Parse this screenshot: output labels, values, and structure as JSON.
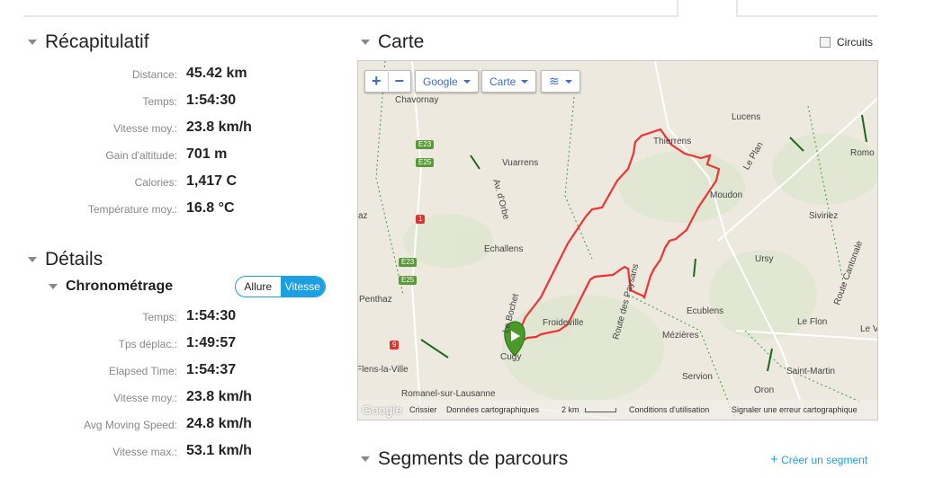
{
  "recap": {
    "title": "Récapitulatif",
    "rows": [
      {
        "label": "Distance:",
        "value": "45.42 km"
      },
      {
        "label": "Temps:",
        "value": "1:54:30"
      },
      {
        "label": "Vitesse moy.:",
        "value": "23.8 km/h"
      },
      {
        "label": "Gain d'altitude:",
        "value": "701 m"
      },
      {
        "label": "Calories:",
        "value": "1,417 C"
      },
      {
        "label": "Température moy.:",
        "value": "16.8 °C"
      }
    ]
  },
  "details": {
    "title": "Détails",
    "sub": "Chronométrage",
    "toggle": [
      "Allure",
      "Vitesse"
    ],
    "toggle_selected": "Vitesse",
    "rows": [
      {
        "label": "Temps:",
        "value": "1:54:30"
      },
      {
        "label": "Tps déplac.:",
        "value": "1:49:57"
      },
      {
        "label": "Elapsed Time:",
        "value": "1:54:37"
      },
      {
        "label": "Vitesse moy.:",
        "value": "23.8 km/h"
      },
      {
        "label": "Avg Moving Speed:",
        "value": "24.8 km/h"
      },
      {
        "label": "Vitesse max.:",
        "value": "53.1 km/h"
      }
    ]
  },
  "map": {
    "title": "Carte",
    "circuits_label": "Circuits",
    "circuits_checked": false,
    "provider": "Google",
    "type": "Carte",
    "zoom_in": "+",
    "zoom_out": "−",
    "places": [
      "Chavornay",
      "Vuarrens",
      "Thierrens",
      "Lucens",
      "Romo",
      "Moudon",
      "Le Plan",
      "Siviriez",
      "Echallens",
      "Ursy",
      "Route Cantonale",
      "Penthaz",
      "Le Bochet",
      "Froideville",
      "Route des Paysans",
      "Ecublens",
      "Le Flon",
      "Mézières",
      "Cugy",
      "Flens-la-Ville",
      "Servion",
      "Saint-Martin",
      "Romanel-sur-Lausanne",
      "Oron",
      "Av. d'Orbe",
      "Le Ve",
      "az"
    ],
    "roads": [
      "E23",
      "E25",
      "1",
      "E23",
      "E25",
      "9"
    ],
    "footer": {
      "logo": "Google",
      "crissier": "Crissier",
      "data": "Données cartographiques",
      "scale": "2 km",
      "terms": "Conditions d'utilisation",
      "report": "Signaler une erreur cartographique"
    },
    "route_color": "#ee3333"
  },
  "segments": {
    "title": "Segments de parcours",
    "create": "Créer un segment",
    "create_icon": "plus-icon"
  },
  "colors": {
    "accent": "#1ba0e2"
  }
}
